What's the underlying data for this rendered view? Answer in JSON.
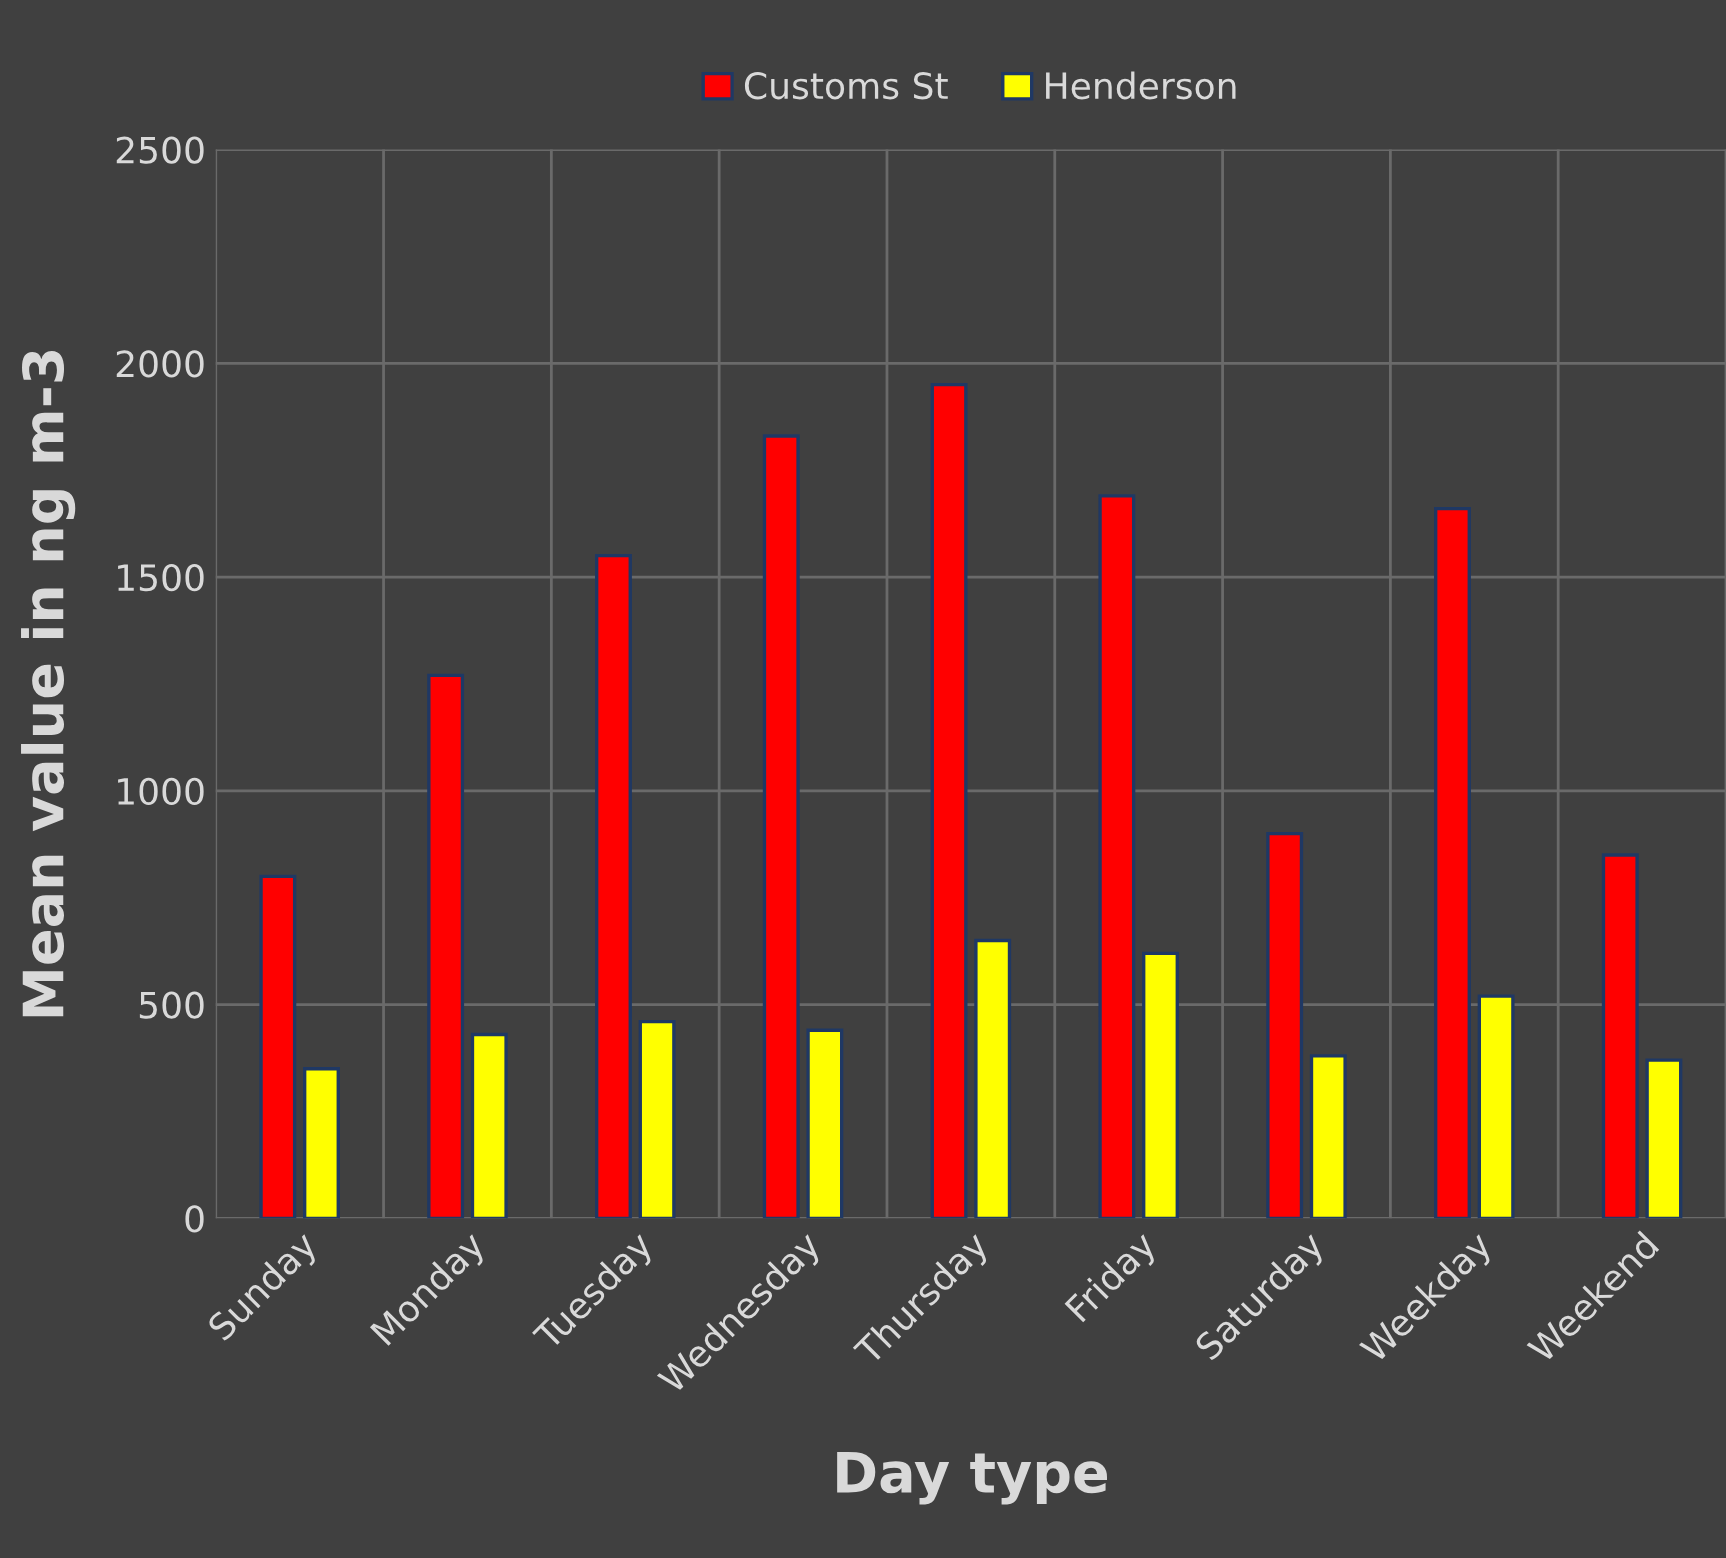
{
  "chart_data": {
    "type": "bar",
    "xlabel": "Day type",
    "ylabel": "Mean value in ng m-3",
    "categories": [
      "Sunday",
      "Monday",
      "Tuesday",
      "Wednesday",
      "Thursday",
      "Friday",
      "Saturday",
      "Weekday",
      "Weekend"
    ],
    "series": [
      {
        "name": "Customs St",
        "color": "#ff0000",
        "values": [
          800,
          1270,
          1550,
          1830,
          1950,
          1690,
          900,
          1660,
          850
        ]
      },
      {
        "name": "Henderson",
        "color": "#ffff00",
        "values": [
          350,
          430,
          460,
          440,
          650,
          620,
          380,
          520,
          370
        ]
      }
    ],
    "ylim": [
      0,
      2500
    ],
    "yticks": [
      0,
      500,
      1000,
      1500,
      2000,
      2500
    ],
    "grid": true,
    "legend": "top"
  }
}
